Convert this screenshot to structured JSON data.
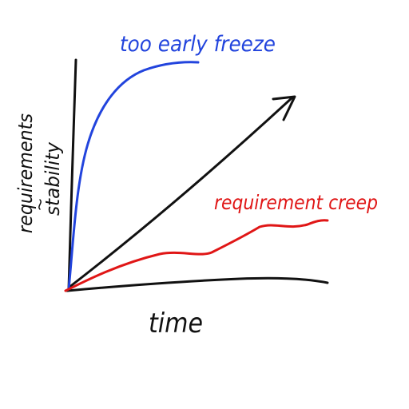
{
  "labels": {
    "too_early_freeze": "too early freeze",
    "requirement_creep": "requirement creep",
    "time": "time",
    "y_axis_line1": "requirements",
    "y_axis_line2": "stability"
  },
  "colors": {
    "blue_curve": "#2244dd",
    "red_curve": "#e01616",
    "axes": "#111111",
    "background": "#ffffff"
  }
}
